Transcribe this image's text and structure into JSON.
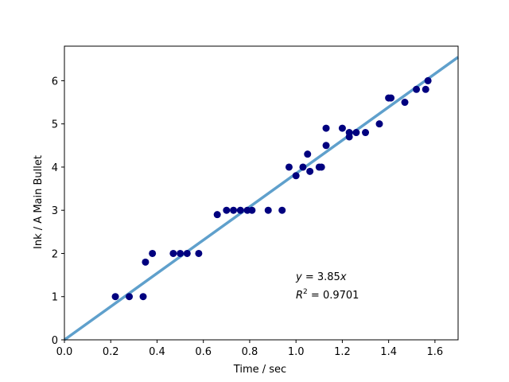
{
  "chart_data": {
    "type": "scatter",
    "title": "",
    "xlabel": "Time / sec",
    "ylabel": "Ink / A Main Bullet",
    "xlim": [
      0.0,
      1.7
    ],
    "ylim": [
      0,
      6.8
    ],
    "xticks": [
      0.0,
      0.2,
      0.4,
      0.6,
      0.8,
      1.0,
      1.2,
      1.4,
      1.6
    ],
    "xtick_labels": [
      "0.0",
      "0.2",
      "0.4",
      "0.6",
      "0.8",
      "1.0",
      "1.2",
      "1.4",
      "1.6"
    ],
    "yticks": [
      0,
      1,
      2,
      3,
      4,
      5,
      6
    ],
    "ytick_labels": [
      "0",
      "1",
      "2",
      "3",
      "4",
      "5",
      "6"
    ],
    "grid": false,
    "points": {
      "color": "#00007f",
      "x": [
        0.22,
        0.28,
        0.34,
        0.35,
        0.38,
        0.47,
        0.5,
        0.53,
        0.58,
        0.66,
        0.7,
        0.73,
        0.76,
        0.79,
        0.81,
        0.88,
        0.94,
        0.97,
        1.0,
        1.03,
        1.05,
        1.06,
        1.1,
        1.11,
        1.13,
        1.13,
        1.2,
        1.23,
        1.23,
        1.26,
        1.3,
        1.36,
        1.4,
        1.41,
        1.47,
        1.52,
        1.56,
        1.57
      ],
      "y": [
        1.0,
        1.0,
        1.0,
        1.8,
        2.0,
        2.0,
        2.0,
        2.0,
        2.0,
        2.9,
        3.0,
        3.0,
        3.0,
        3.0,
        3.0,
        3.0,
        3.0,
        4.0,
        3.8,
        4.0,
        4.3,
        3.9,
        4.0,
        4.0,
        4.5,
        4.9,
        4.9,
        4.7,
        4.8,
        4.8,
        4.8,
        5.0,
        5.6,
        5.6,
        5.5,
        5.8,
        5.8,
        6.0
      ]
    },
    "fit_line": {
      "slope": 3.85,
      "color": "#5fa0cc"
    },
    "annotation": {
      "equation_lhs": "y",
      "equation_rhs": " = 3.85",
      "equation_var": "x",
      "r2_label": "R",
      "r2_sup": "2",
      "r2_value": " = 0.9701"
    }
  }
}
